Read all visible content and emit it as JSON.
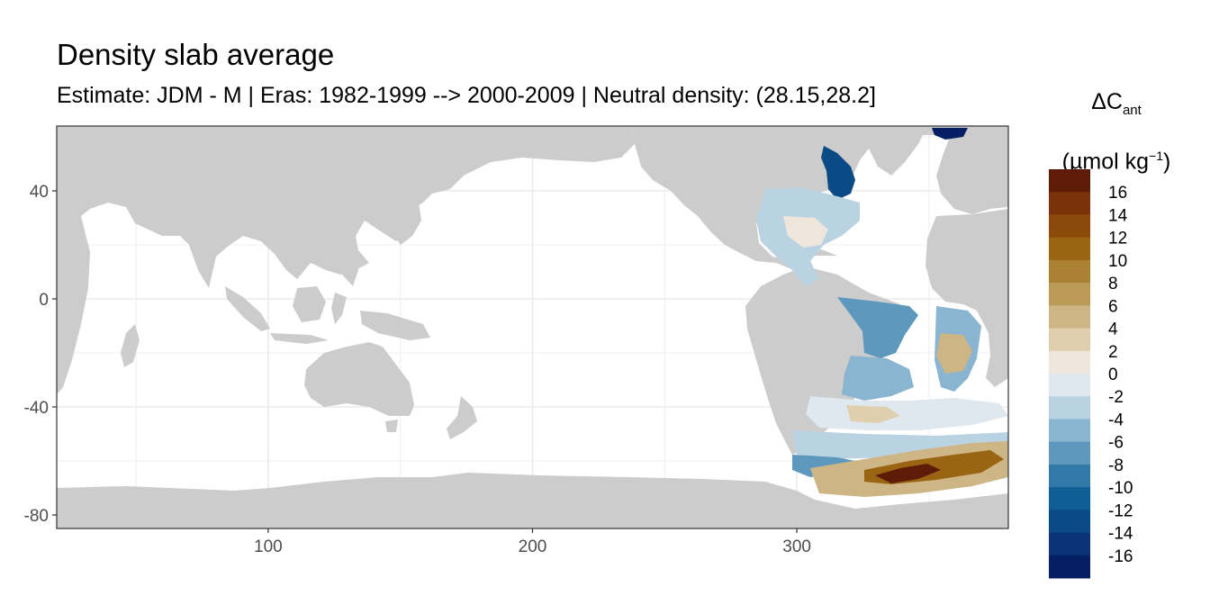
{
  "chart_data": {
    "type": "heatmap",
    "title": "Density slab average",
    "subtitle": "Estimate: JDM - M | Eras: 1982-1999 --> 2000-2009 | Neutral density: (28.15,28.2]",
    "legend": {
      "title_main": "ΔC",
      "title_sub": "ant",
      "unit_prefix": "(µmol kg",
      "unit_sup": "−1",
      "unit_suffix": ")",
      "placement": "right",
      "breaks": [
        16,
        14,
        12,
        10,
        8,
        6,
        4,
        2,
        0,
        -2,
        -4,
        -6,
        -8,
        -10,
        -12,
        -14,
        -16
      ],
      "colors": [
        "#5e1b07",
        "#7a3308",
        "#8c4a0a",
        "#9a6512",
        "#ab8233",
        "#bb9a58",
        "#cdb585",
        "#e0cfae",
        "#eee6da",
        "#dfe8ee",
        "#b9d3e3",
        "#8ab5d0",
        "#5e98bd",
        "#3279a8",
        "#0f5e96",
        "#0a4a85",
        "#0a3475",
        "#061e63"
      ]
    },
    "x_axis": {
      "ticks": [
        100,
        200,
        300
      ],
      "range": [
        20,
        380
      ]
    },
    "y_axis": {
      "ticks": [
        40,
        0,
        -40,
        -80
      ],
      "range": [
        -85,
        64
      ]
    },
    "grid": true,
    "land_color": "#cccccc",
    "ocean_color": "#ffffff"
  }
}
